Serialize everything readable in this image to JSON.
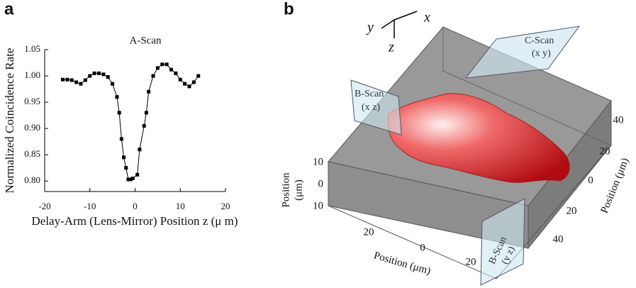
{
  "chart_data": [
    {
      "type": "line",
      "panel": "a",
      "title": "A-Scan",
      "x_label": "Delay-Arm (Lens-Mirror) Position z (μ m)",
      "y_label": "Normalized Coincidence Rate",
      "x": [
        -16,
        -15,
        -14,
        -13,
        -12,
        -11,
        -10,
        -9,
        -8,
        -7,
        -6,
        -5,
        -4,
        -3.5,
        -3,
        -2.5,
        -2,
        -1.5,
        -1,
        -0.5,
        0.5,
        1,
        2,
        2.5,
        3,
        4,
        5,
        6,
        7,
        8,
        9,
        10,
        11,
        12,
        13,
        14
      ],
      "values": [
        0.993,
        0.993,
        0.992,
        0.988,
        0.985,
        0.992,
        1.0,
        1.005,
        1.005,
        1.003,
        0.998,
        0.985,
        0.96,
        0.93,
        0.88,
        0.845,
        0.825,
        0.803,
        0.803,
        0.805,
        0.812,
        0.86,
        0.905,
        0.93,
        0.97,
        1.0,
        1.015,
        1.022,
        1.022,
        1.012,
        1.005,
        0.993,
        0.985,
        0.98,
        0.988,
        1.0
      ],
      "color": "#000000",
      "xlim": [
        -20,
        20
      ],
      "xticks": [
        -20,
        -10,
        0,
        10,
        20
      ],
      "ylim": [
        0.78,
        1.05
      ],
      "yticks": [
        {
          "value": 0.8,
          "label": "0.80"
        },
        {
          "value": 0.85,
          "label": "0.85"
        },
        {
          "value": 0.9,
          "label": "0.90"
        },
        {
          "value": 0.95,
          "label": "0.95"
        },
        {
          "value": 1.0,
          "label": "1.00"
        },
        {
          "value": 1.05,
          "label": "1.05"
        }
      ]
    }
  ],
  "panel_b": {
    "panel": "b",
    "axes": [
      "x",
      "y",
      "z"
    ],
    "c_scan": [
      "C-Scan",
      "(x y)"
    ],
    "b_scan_xz": [
      "B-Scan",
      "(x z)"
    ],
    "b_scan_yz": [
      "B-Scan",
      "(y z)"
    ],
    "left_axis": {
      "label": [
        "Position",
        "(μm)"
      ],
      "ticks": [
        "10",
        "0",
        "10"
      ]
    },
    "front_axis": {
      "label": "Position (μm)",
      "ticks": [
        "20",
        "0",
        "20"
      ]
    },
    "right_axis": {
      "label": "Position (μm)",
      "ticks": [
        "40",
        "20",
        "0",
        "20",
        "40"
      ]
    }
  }
}
